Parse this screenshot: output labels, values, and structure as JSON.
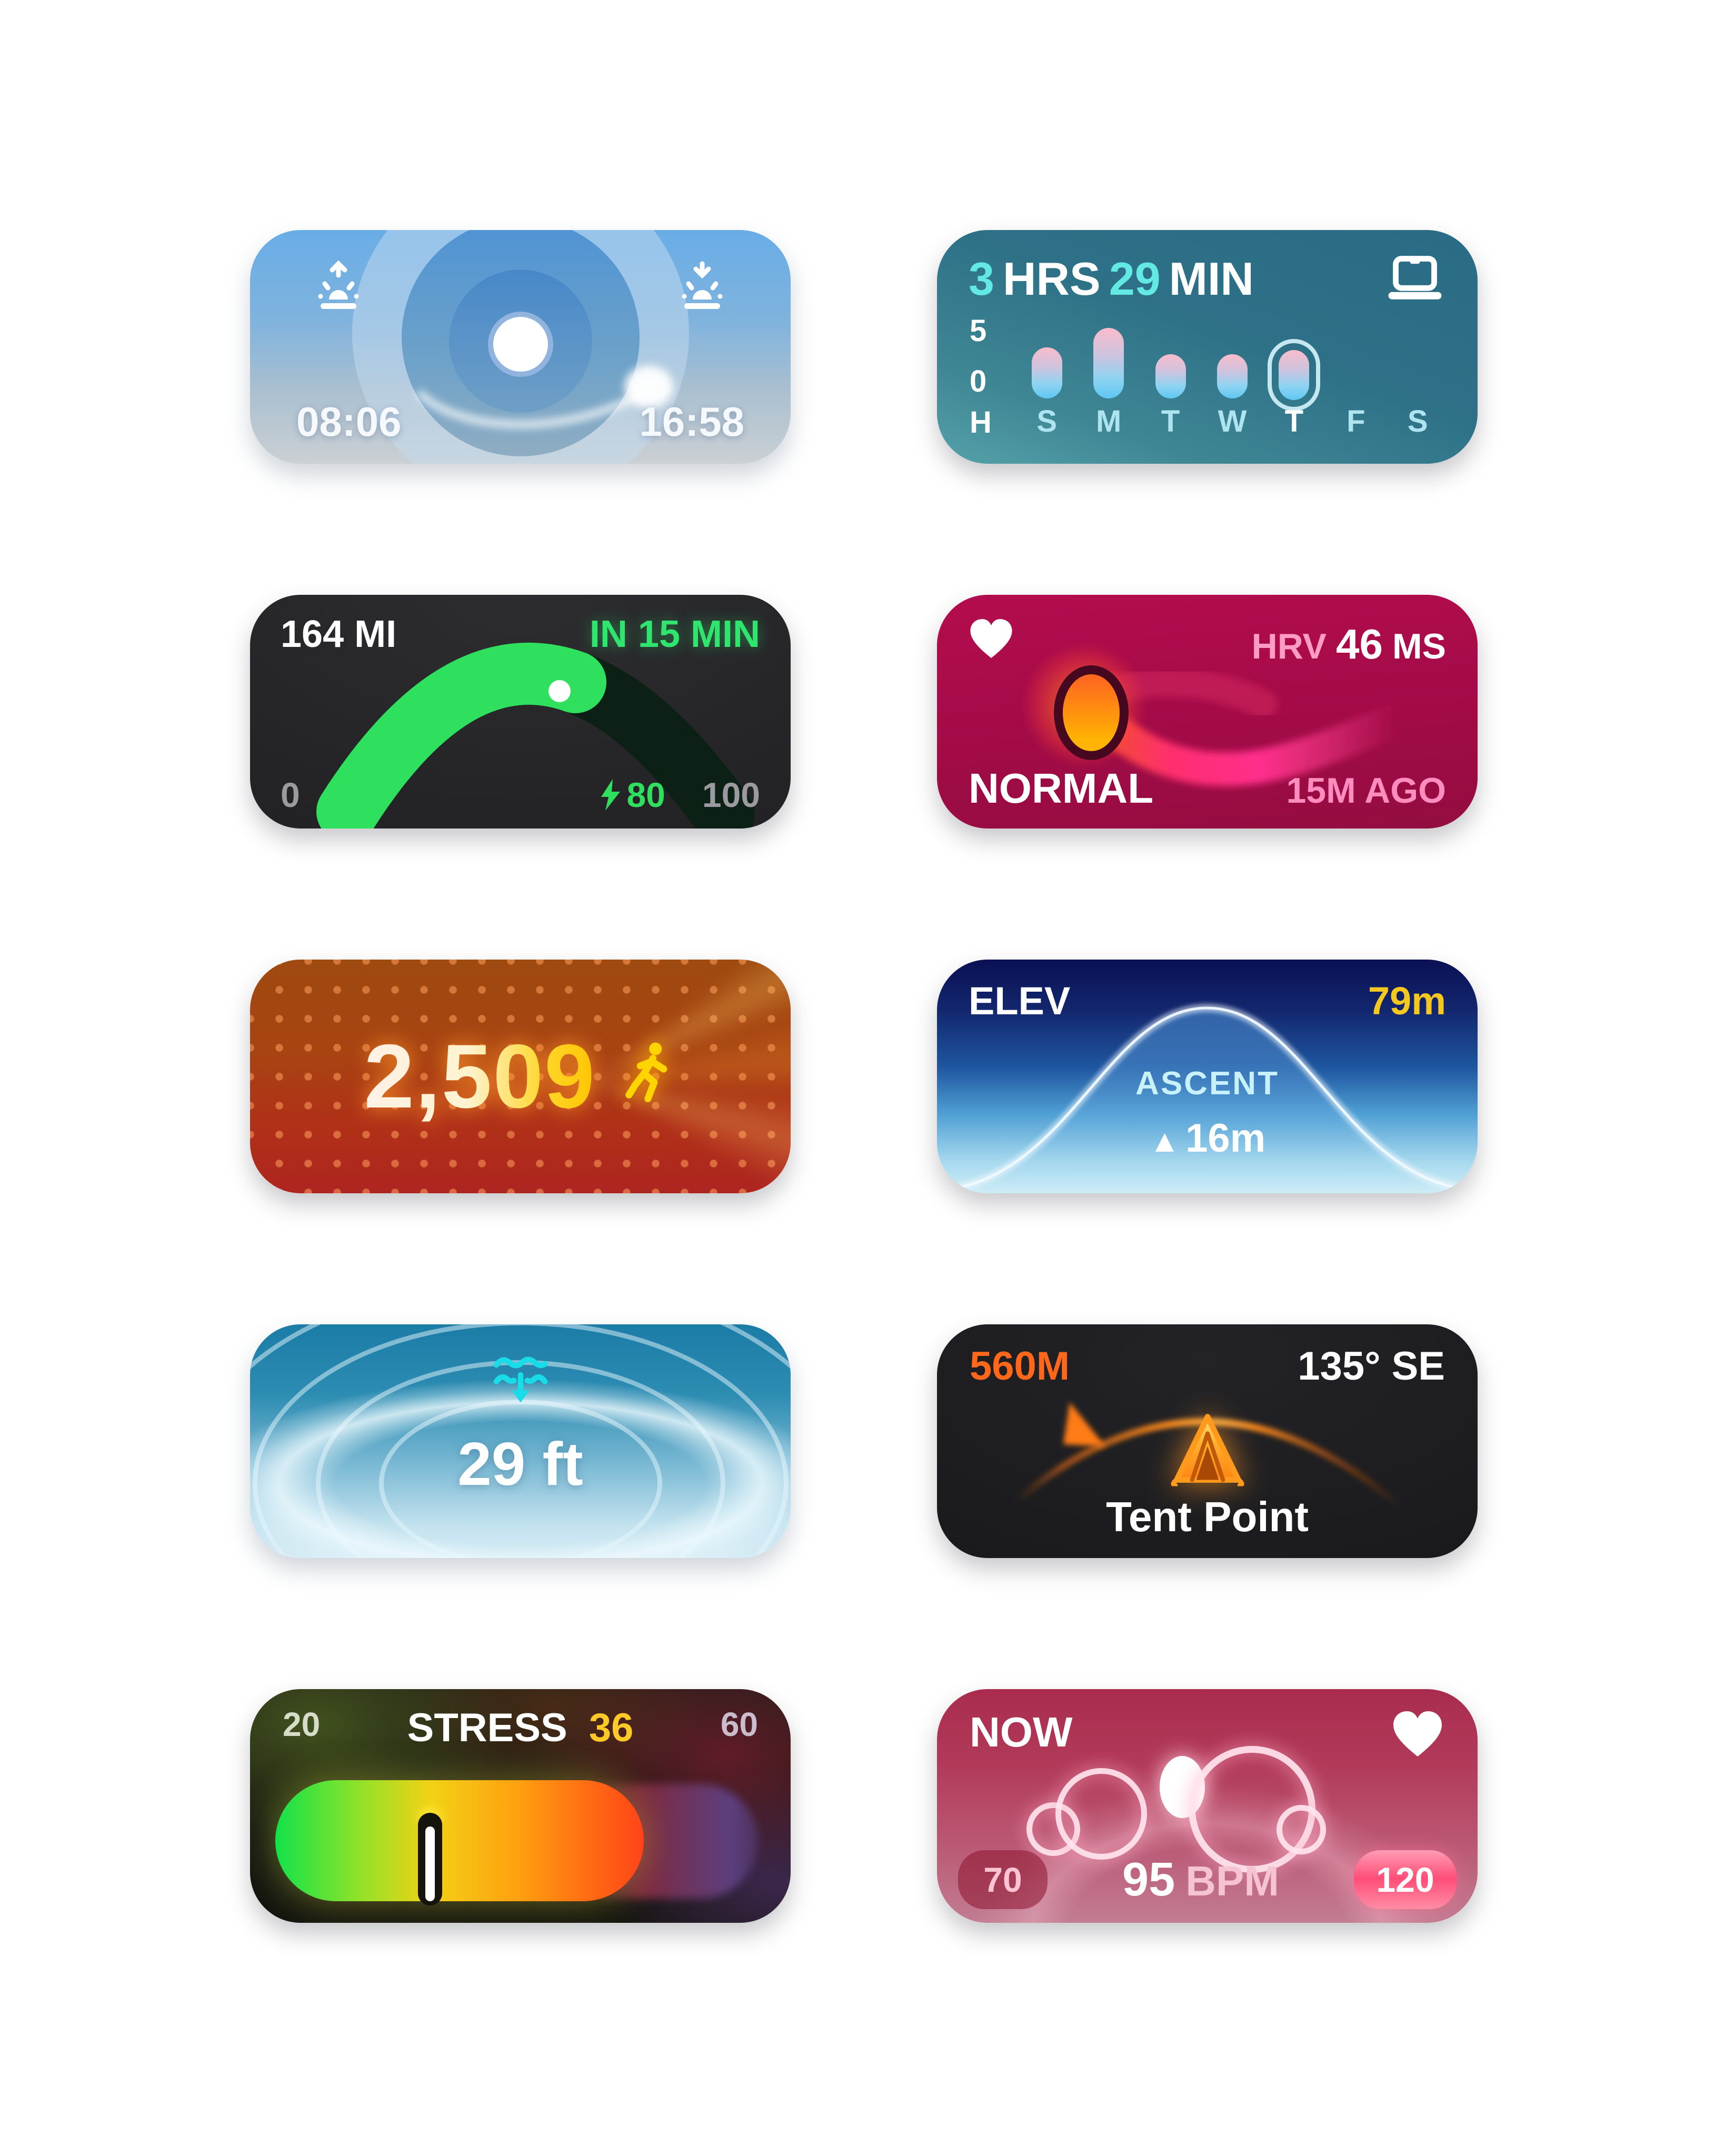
{
  "page": {
    "background": "#ffffff"
  },
  "icons": {
    "sunrise": "sunrise-icon",
    "sunset": "sunset-icon",
    "laptop": "laptop-icon",
    "bolt": "bolt-icon",
    "heart": "heart-icon",
    "runner": "runner-icon",
    "water_depth": "water-depth-icon",
    "tent": "tent-icon"
  },
  "colors": {
    "screen_time_accent": "#63e9e3",
    "range_accent": "#2fe56d",
    "hrv_pink": "#ff9cc6",
    "steps_yellow": "#ffc400",
    "elev_yellow": "#f4c81e",
    "depth_cyan": "#18dce8",
    "waypoint_orange": "#ff671a",
    "stress_yellow": "#ffc928"
  },
  "widgets": {
    "daylight": {
      "sunrise_time": "08:06",
      "sunset_time": "16:58"
    },
    "screen_time": {
      "hours": "3",
      "hours_unit": "HRS",
      "minutes": "29",
      "minutes_unit": "MIN",
      "y_axis_top": "5",
      "y_axis_bottom": "0",
      "y_axis_unit": "H",
      "days": [
        "S",
        "M",
        "T",
        "W",
        "T",
        "F",
        "S"
      ],
      "chart": {
        "type": "bar",
        "values_hours": [
          4.6,
          6.4,
          4.0,
          4.0,
          4.5,
          0,
          0
        ],
        "active_day_index": 4,
        "axis_max_hours": 5
      }
    },
    "ev_range": {
      "distance": "164 MI",
      "eta": "IN 15 MIN",
      "gauge_min": "0",
      "charge_percent": "80",
      "gauge_max": "100",
      "chart": {
        "type": "gauge",
        "value": 80,
        "min": 0,
        "max": 100
      }
    },
    "hrv": {
      "metric": "HRV",
      "value": "46",
      "unit": "MS",
      "status": "NORMAL",
      "updated": "15M AGO"
    },
    "steps": {
      "count": "2,509"
    },
    "elevation": {
      "label": "ELEV",
      "value": "79m",
      "sub_label": "ASCENT",
      "ascent_arrow": "▲",
      "ascent_value": "16m"
    },
    "depth": {
      "value": "29 ft"
    },
    "waypoint": {
      "distance": "560M",
      "bearing": "135° SE",
      "name": "Tent Point"
    },
    "stress": {
      "min": "20",
      "label": "STRESS",
      "value": "36",
      "max": "60",
      "chart": {
        "type": "gauge",
        "value": 36,
        "min": 20,
        "max": 60
      }
    },
    "heart_rate": {
      "label": "NOW",
      "min": "70",
      "value": "95",
      "unit": "BPM",
      "max": "120",
      "chart": {
        "type": "gauge",
        "value": 95,
        "min": 70,
        "max": 120
      }
    }
  }
}
